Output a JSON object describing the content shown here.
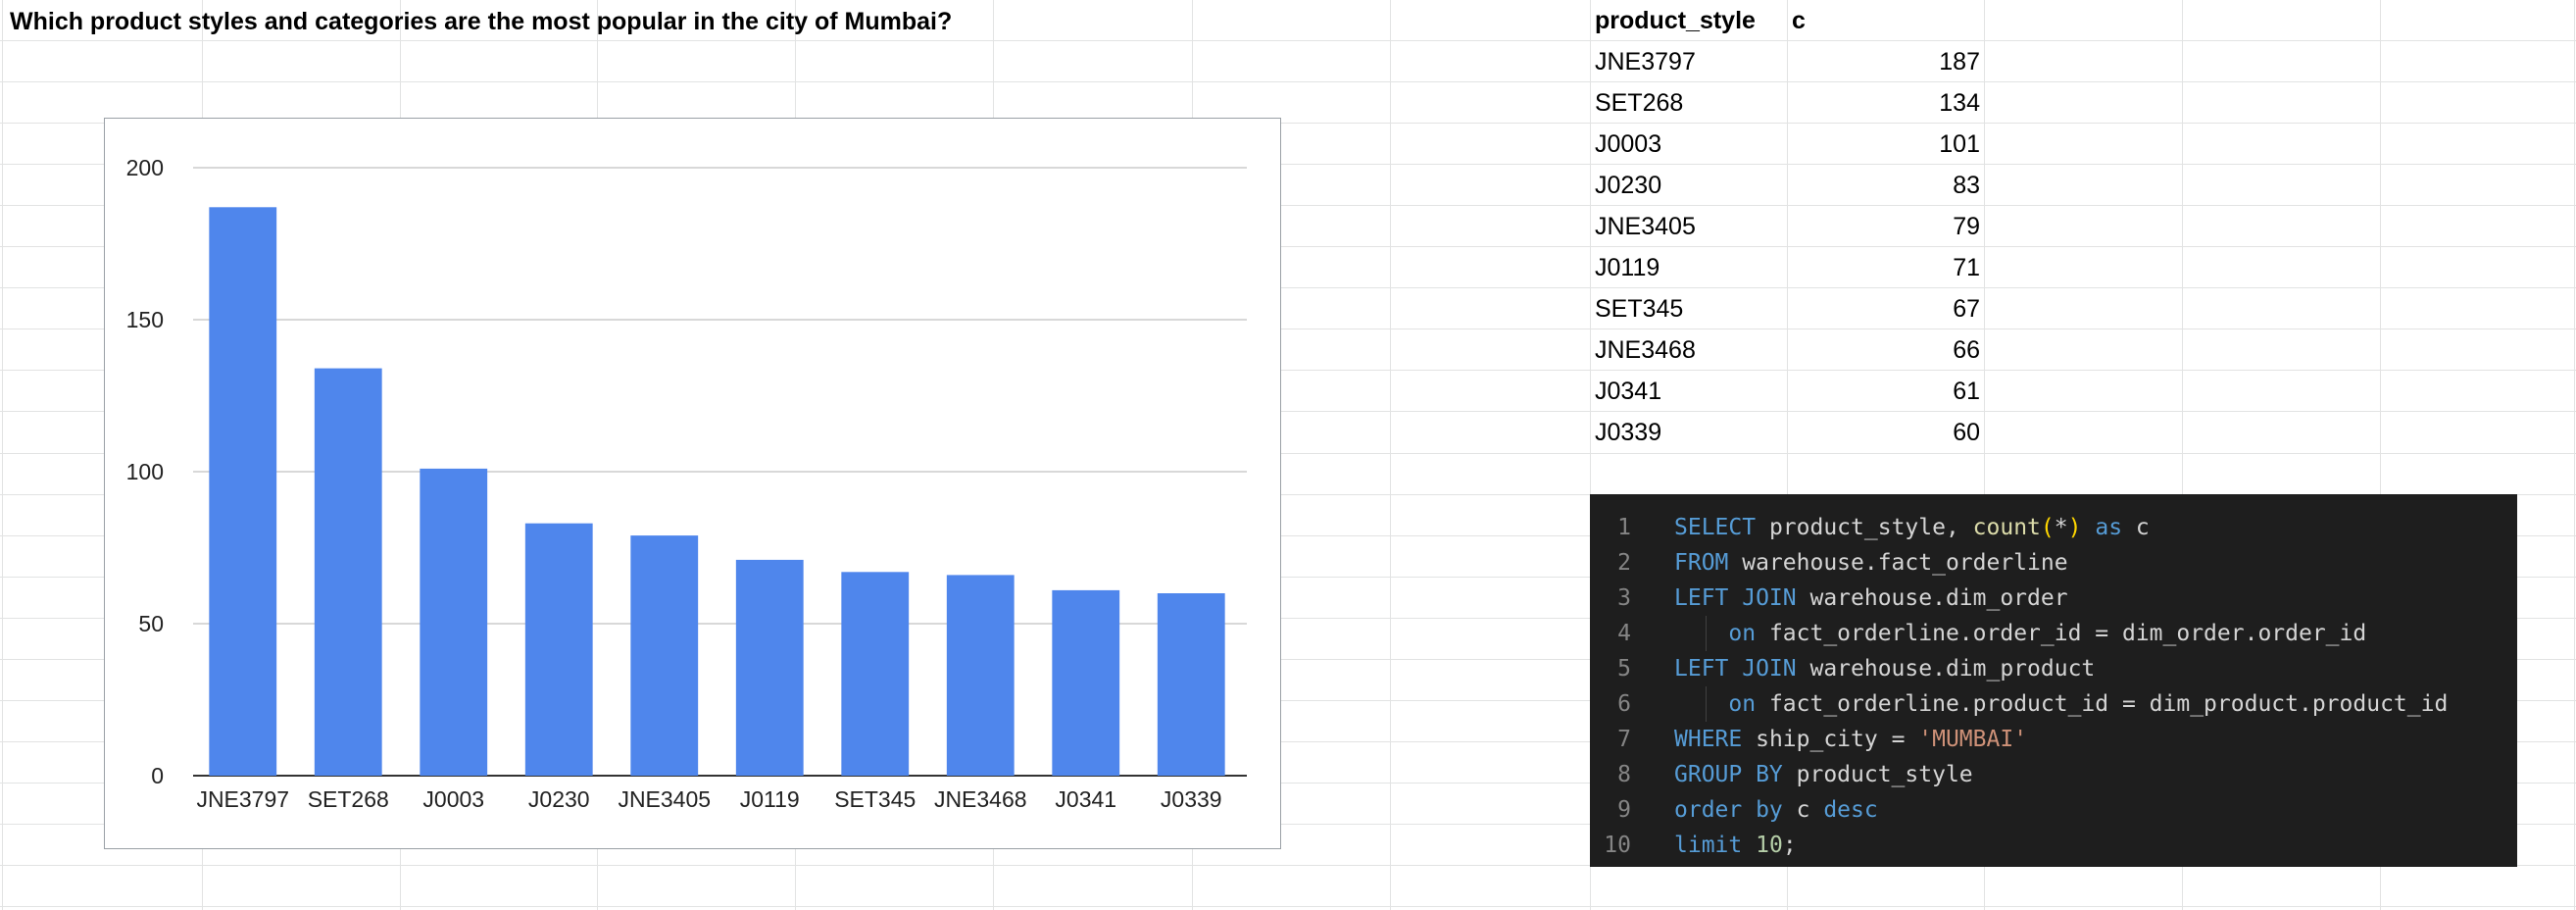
{
  "sheet": {
    "question": "Which product styles and categories are the most popular in the city of Mumbai?"
  },
  "table": {
    "headers": [
      "product_style",
      "c"
    ],
    "rows": [
      {
        "product_style": "JNE3797",
        "c": "187"
      },
      {
        "product_style": "SET268",
        "c": "134"
      },
      {
        "product_style": "J0003",
        "c": "101"
      },
      {
        "product_style": "J0230",
        "c": "83"
      },
      {
        "product_style": "JNE3405",
        "c": "79"
      },
      {
        "product_style": "J0119",
        "c": "71"
      },
      {
        "product_style": "SET345",
        "c": "67"
      },
      {
        "product_style": "JNE3468",
        "c": "66"
      },
      {
        "product_style": "J0341",
        "c": "61"
      },
      {
        "product_style": "J0339",
        "c": "60"
      }
    ]
  },
  "chart_data": {
    "type": "bar",
    "title": "",
    "xlabel": "",
    "ylabel": "",
    "categories": [
      "JNE3797",
      "SET268",
      "J0003",
      "J0230",
      "JNE3405",
      "J0119",
      "SET345",
      "JNE3468",
      "J0341",
      "J0339"
    ],
    "values": [
      187,
      134,
      101,
      83,
      79,
      71,
      67,
      66,
      61,
      60
    ],
    "ylim": [
      0,
      200
    ],
    "yticks": [
      0,
      50,
      100,
      150,
      200
    ],
    "grid": true,
    "legend": "none",
    "bar_color": "#4f86ec"
  },
  "code_editor": {
    "lines": [
      {
        "n": "1",
        "indent": false,
        "tokens": [
          [
            "kw",
            "SELECT"
          ],
          [
            "id",
            " product_style, "
          ],
          [
            "fn",
            "count"
          ],
          [
            "pn",
            "("
          ],
          [
            "id",
            "*"
          ],
          [
            "pn",
            ")"
          ],
          [
            "id",
            " "
          ],
          [
            "kw",
            "as"
          ],
          [
            "id",
            " c"
          ]
        ]
      },
      {
        "n": "2",
        "indent": false,
        "tokens": [
          [
            "kw",
            "FROM"
          ],
          [
            "id",
            " warehouse.fact_orderline"
          ]
        ]
      },
      {
        "n": "3",
        "indent": false,
        "tokens": [
          [
            "kw",
            "LEFT JOIN"
          ],
          [
            "id",
            " warehouse.dim_order"
          ]
        ]
      },
      {
        "n": "4",
        "indent": true,
        "tokens": [
          [
            "id",
            "    "
          ],
          [
            "kw",
            "on"
          ],
          [
            "id",
            " fact_orderline.order_id = dim_order.order_id"
          ]
        ]
      },
      {
        "n": "5",
        "indent": false,
        "tokens": [
          [
            "kw",
            "LEFT JOIN"
          ],
          [
            "id",
            " warehouse.dim_product"
          ]
        ]
      },
      {
        "n": "6",
        "indent": true,
        "tokens": [
          [
            "id",
            "    "
          ],
          [
            "kw",
            "on"
          ],
          [
            "id",
            " fact_orderline.product_id = dim_product.product_id"
          ]
        ]
      },
      {
        "n": "7",
        "indent": false,
        "tokens": [
          [
            "kw",
            "WHERE"
          ],
          [
            "id",
            " ship_city = "
          ],
          [
            "str",
            "'MUMBAI'"
          ]
        ]
      },
      {
        "n": "8",
        "indent": false,
        "tokens": [
          [
            "kw",
            "GROUP BY"
          ],
          [
            "id",
            " product_style"
          ]
        ]
      },
      {
        "n": "9",
        "indent": false,
        "tokens": [
          [
            "kw",
            "order by"
          ],
          [
            "id",
            " c "
          ],
          [
            "kw",
            "desc"
          ]
        ]
      },
      {
        "n": "10",
        "indent": false,
        "tokens": [
          [
            "kw",
            "limit"
          ],
          [
            "id",
            " "
          ],
          [
            "num",
            "10"
          ],
          [
            "id",
            ";"
          ]
        ]
      }
    ]
  }
}
